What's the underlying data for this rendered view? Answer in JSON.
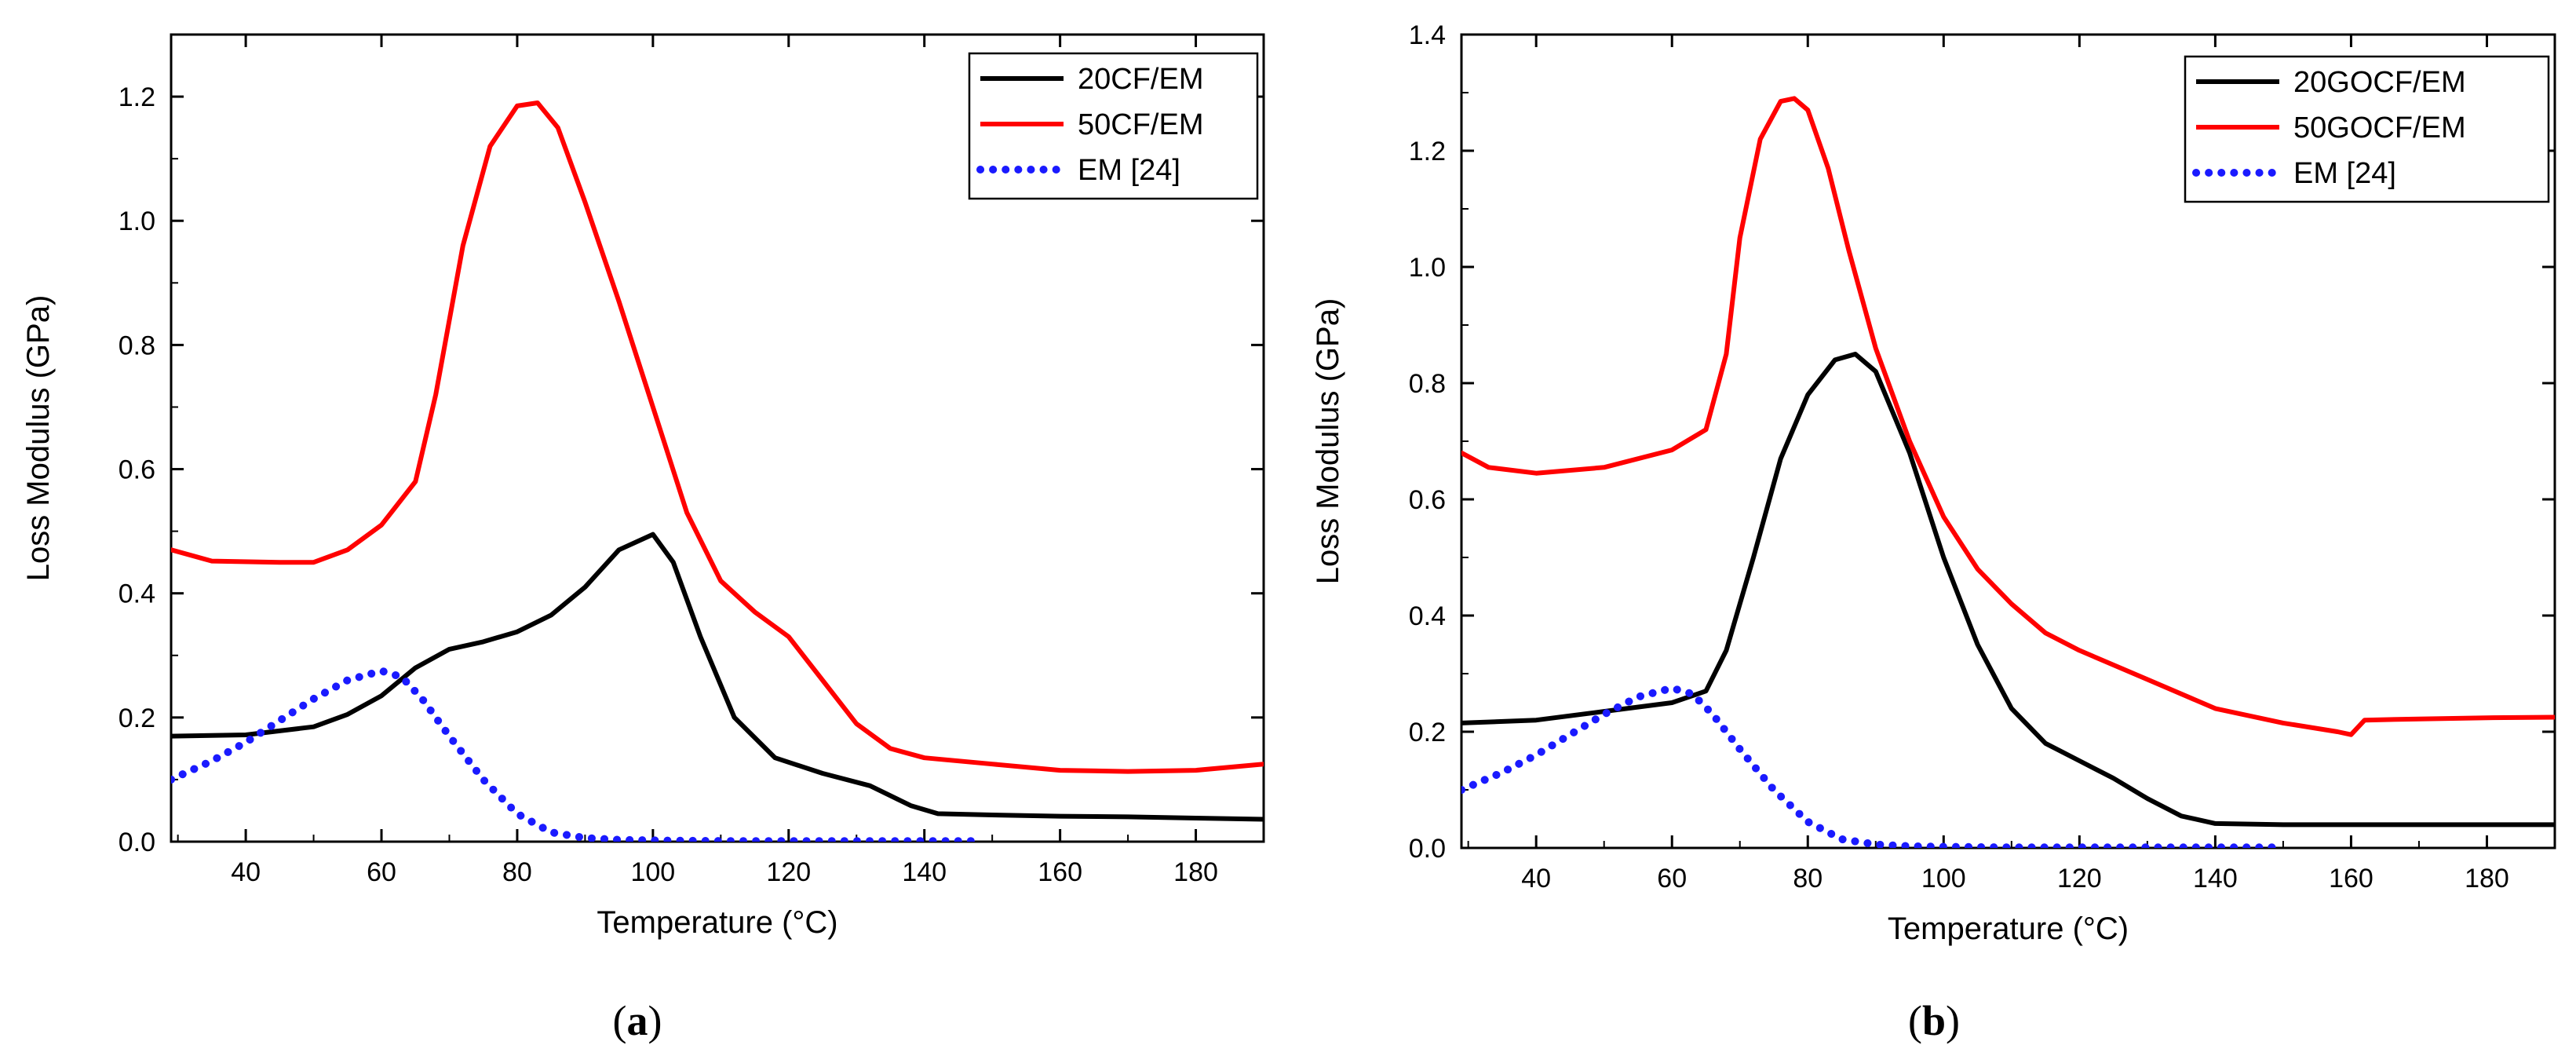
{
  "chart_data": [
    {
      "type": "line",
      "caption": {
        "open": "(",
        "letter": "a",
        "close": ")"
      },
      "xlabel": "Temperature (°C)",
      "ylabel": "Loss Modulus (GPa)",
      "xlim": [
        29,
        190
      ],
      "ylim": [
        0,
        1.3
      ],
      "xticks": [
        40,
        60,
        80,
        100,
        120,
        140,
        160,
        180
      ],
      "yticks": [
        0.0,
        0.2,
        0.4,
        0.6,
        0.8,
        1.0,
        1.2
      ],
      "ytick_labels": [
        "0.0",
        "0.2",
        "0.4",
        "0.6",
        "0.8",
        "1.0",
        "1.2"
      ],
      "legend_position": "top-right",
      "series": [
        {
          "name": "20CF/EM",
          "color": "#000000",
          "style": "solid",
          "x": [
            29,
            40,
            50,
            55,
            60,
            65,
            70,
            75,
            80,
            85,
            90,
            95,
            100,
            103,
            107,
            112,
            118,
            125,
            132,
            138,
            142,
            150,
            160,
            170,
            180,
            190
          ],
          "y": [
            0.17,
            0.172,
            0.185,
            0.205,
            0.235,
            0.28,
            0.31,
            0.322,
            0.338,
            0.365,
            0.41,
            0.47,
            0.495,
            0.45,
            0.33,
            0.2,
            0.135,
            0.11,
            0.09,
            0.058,
            0.045,
            0.043,
            0.041,
            0.04,
            0.038,
            0.036
          ]
        },
        {
          "name": "50CF/EM",
          "color": "#ff0000",
          "style": "solid",
          "x": [
            29,
            35,
            45,
            50,
            55,
            60,
            65,
            68,
            72,
            76,
            80,
            83,
            86,
            90,
            95,
            100,
            105,
            110,
            115,
            120,
            125,
            130,
            135,
            140,
            150,
            160,
            170,
            180,
            190
          ],
          "y": [
            0.47,
            0.452,
            0.45,
            0.45,
            0.47,
            0.51,
            0.58,
            0.72,
            0.96,
            1.12,
            1.185,
            1.19,
            1.15,
            1.03,
            0.87,
            0.7,
            0.53,
            0.42,
            0.37,
            0.33,
            0.26,
            0.19,
            0.15,
            0.135,
            0.125,
            0.115,
            0.113,
            0.115,
            0.125
          ]
        },
        {
          "name": "EM [24]",
          "color": "#1a1aff",
          "style": "dotted",
          "x": [
            29,
            35,
            40,
            45,
            50,
            55,
            60,
            63,
            66,
            70,
            75,
            80,
            85,
            90,
            95,
            100,
            110,
            120,
            130,
            140,
            148
          ],
          "y": [
            0.1,
            0.13,
            0.16,
            0.195,
            0.23,
            0.26,
            0.275,
            0.265,
            0.23,
            0.17,
            0.1,
            0.045,
            0.015,
            0.006,
            0.003,
            0.002,
            0.001,
            0.001,
            0.001,
            0.001,
            0.001
          ]
        }
      ]
    },
    {
      "type": "line",
      "caption": {
        "open": "(",
        "letter": "b",
        "close": ")"
      },
      "xlabel": "Temperature (°C)",
      "ylabel": "Loss Modulus (GPa)",
      "xlim": [
        29,
        190
      ],
      "ylim": [
        0,
        1.4
      ],
      "xticks": [
        40,
        60,
        80,
        100,
        120,
        140,
        160,
        180
      ],
      "yticks": [
        0.0,
        0.2,
        0.4,
        0.6,
        0.8,
        1.0,
        1.2,
        1.4
      ],
      "ytick_labels": [
        "0.0",
        "0.2",
        "0.4",
        "0.6",
        "0.8",
        "1.0",
        "1.2",
        "1.4"
      ],
      "legend_position": "top-right",
      "series": [
        {
          "name": "20GOCF/EM",
          "color": "#000000",
          "style": "solid",
          "x": [
            29,
            40,
            50,
            60,
            65,
            68,
            72,
            76,
            80,
            84,
            87,
            90,
            95,
            100,
            105,
            110,
            115,
            120,
            125,
            130,
            135,
            140,
            150,
            160,
            170,
            180,
            190
          ],
          "y": [
            0.215,
            0.22,
            0.235,
            0.25,
            0.27,
            0.34,
            0.5,
            0.67,
            0.78,
            0.84,
            0.85,
            0.82,
            0.68,
            0.5,
            0.35,
            0.24,
            0.18,
            0.15,
            0.12,
            0.085,
            0.055,
            0.042,
            0.04,
            0.04,
            0.04,
            0.04,
            0.04
          ]
        },
        {
          "name": "50GOCF/EM",
          "color": "#ff0000",
          "style": "solid",
          "x": [
            29,
            33,
            40,
            50,
            60,
            65,
            68,
            70,
            73,
            76,
            78,
            80,
            83,
            86,
            90,
            95,
            100,
            105,
            110,
            115,
            120,
            130,
            140,
            150,
            158,
            160,
            162,
            170,
            180,
            190
          ],
          "y": [
            0.68,
            0.655,
            0.645,
            0.655,
            0.685,
            0.72,
            0.85,
            1.05,
            1.22,
            1.285,
            1.29,
            1.27,
            1.17,
            1.03,
            0.86,
            0.7,
            0.57,
            0.48,
            0.42,
            0.37,
            0.34,
            0.29,
            0.24,
            0.215,
            0.2,
            0.195,
            0.22,
            0.222,
            0.224,
            0.225
          ]
        },
        {
          "name": "EM [24]",
          "color": "#1a1aff",
          "style": "dotted",
          "x": [
            29,
            35,
            40,
            45,
            50,
            55,
            60,
            63,
            66,
            70,
            75,
            80,
            85,
            90,
            95,
            100,
            110,
            120,
            130,
            140,
            150
          ],
          "y": [
            0.1,
            0.13,
            0.16,
            0.195,
            0.23,
            0.26,
            0.275,
            0.265,
            0.23,
            0.17,
            0.1,
            0.045,
            0.015,
            0.006,
            0.003,
            0.002,
            0.001,
            0.001,
            0.001,
            0.001,
            0.001
          ]
        }
      ]
    }
  ]
}
